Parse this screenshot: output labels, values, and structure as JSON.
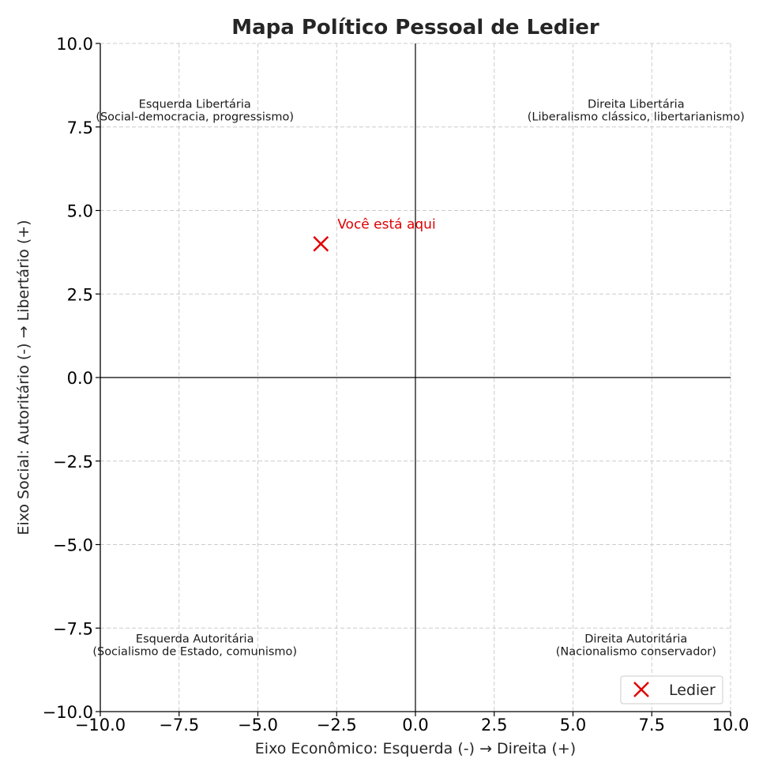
{
  "chart_data": {
    "type": "scatter",
    "title": "Mapa Político Pessoal de Ledier",
    "xlabel": "Eixo Econômico: Esquerda (-) → Direita (+)",
    "ylabel": "Eixo Social: Autoritário (-) → Libertário (+)",
    "xlim": [
      -10,
      10
    ],
    "ylim": [
      -10,
      10
    ],
    "x_ticks": [
      -10,
      -7.5,
      -5,
      -2.5,
      0,
      2.5,
      5,
      7.5,
      10
    ],
    "y_ticks": [
      -10,
      -7.5,
      -5,
      -2.5,
      0,
      2.5,
      5,
      7.5,
      10
    ],
    "x_tick_labels": [
      "−10.0",
      "−7.5",
      "−5.0",
      "−2.5",
      "0.0",
      "2.5",
      "5.0",
      "7.5",
      "10.0"
    ],
    "y_tick_labels": [
      "−10.0",
      "−7.5",
      "−5.0",
      "−2.5",
      "0.0",
      "2.5",
      "5.0",
      "7.5",
      "10.0"
    ],
    "grid": true,
    "grid_style": "dashed",
    "reference_lines": {
      "x": 0,
      "y": 0
    },
    "series": [
      {
        "name": "Ledier",
        "marker": "x",
        "color": "#e00000",
        "points": [
          {
            "x": -3,
            "y": 4
          }
        ]
      }
    ],
    "annotations": [
      {
        "text": "Você está aqui",
        "x": -2.5,
        "y": 4.5,
        "color": "#e00000"
      }
    ],
    "quadrant_labels": [
      {
        "lines": [
          "Esquerda Libertária",
          "(Social-democracia, progressismo)"
        ],
        "x": -7,
        "y": 8
      },
      {
        "lines": [
          "Direita Libertária",
          "(Liberalismo clássico, libertarianismo)"
        ],
        "x": 7,
        "y": 8
      },
      {
        "lines": [
          "Esquerda Autoritária",
          "(Socialismo de Estado, comunismo)"
        ],
        "x": -7,
        "y": -8
      },
      {
        "lines": [
          "Direita Autoritária",
          "(Nacionalismo conservador)"
        ],
        "x": 7,
        "y": -8
      }
    ],
    "legend": {
      "position": "bottom-right",
      "entries": [
        "Ledier"
      ]
    }
  }
}
